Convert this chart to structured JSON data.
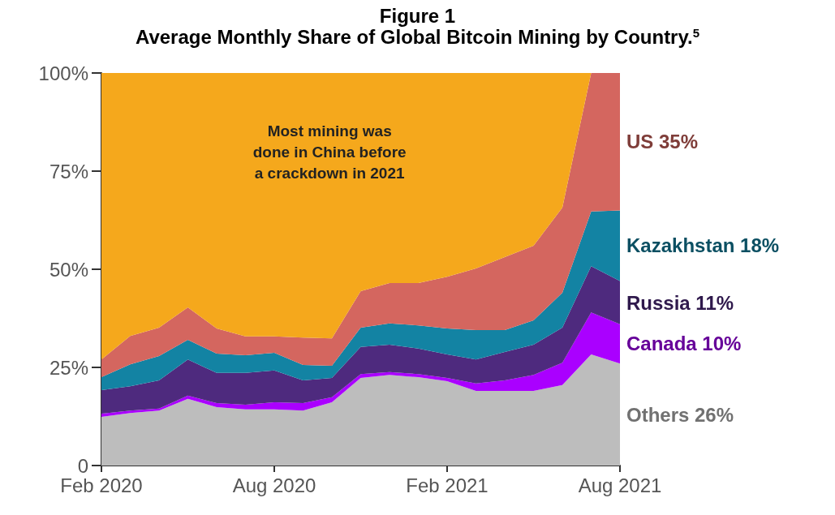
{
  "chart_data": {
    "type": "area",
    "stacked": true,
    "title": "Figure 1",
    "subtitle": "Average Monthly Share of Global Bitcoin Mining by Country.$^{5}$",
    "x": [
      "2020-02",
      "2020-03",
      "2020-04",
      "2020-05",
      "2020-06",
      "2020-07",
      "2020-08",
      "2020-09",
      "2020-10",
      "2020-11",
      "2020-12",
      "2021-01",
      "2021-02",
      "2021-03",
      "2021-04",
      "2021-05",
      "2021-06",
      "2021-07",
      "2021-08"
    ],
    "series": [
      {
        "name": "Others 26%",
        "color": "#bdbdbd",
        "values": [
          12.4,
          13.4,
          14,
          17,
          14.9,
          14.3,
          14.3,
          14,
          16.1,
          22.3,
          23.1,
          22.5,
          21.5,
          19,
          19,
          19,
          20.5,
          28.3,
          26
        ]
      },
      {
        "name": "Canada 10%",
        "color": "#aa00ff",
        "values": [
          0.8,
          0.6,
          0.5,
          0.8,
          1.0,
          1.2,
          1.8,
          1.9,
          1.3,
          1.0,
          0.7,
          0.8,
          0.8,
          1.9,
          2.7,
          4.1,
          5.7,
          10.7,
          10
        ]
      },
      {
        "name": "Russia 11%",
        "color": "#4e2a7e",
        "values": [
          6.0,
          6.2,
          7.2,
          9.2,
          7.7,
          8.1,
          8.1,
          5.8,
          4.9,
          6.9,
          7.0,
          6.5,
          6.0,
          6.1,
          7.2,
          7.7,
          8.9,
          11.8,
          11
        ]
      },
      {
        "name": "Kazakhstan 18%",
        "color": "#1383a3",
        "values": [
          3.3,
          5.6,
          6.2,
          5.0,
          4.9,
          4.5,
          4.5,
          3.9,
          3.1,
          4.9,
          5.4,
          5.9,
          6.6,
          7.5,
          5.6,
          6.2,
          8.9,
          13.9,
          18
        ]
      },
      {
        "name": "US 35%",
        "color": "#d4665f",
        "values": [
          4.5,
          7.2,
          7.2,
          8.3,
          6.4,
          4.8,
          4.2,
          7.0,
          7.0,
          9.3,
          10.3,
          10.8,
          13.2,
          15.7,
          18.6,
          19,
          21.7,
          35.3,
          35
        ]
      },
      {
        "color": "#f5a81c",
        "values": [
          73,
          67,
          64.9,
          59.7,
          65.1,
          67.1,
          67.1,
          67.4,
          67.6,
          55.6,
          53.5,
          53.5,
          51.9,
          49.8,
          46.9,
          44,
          34.3,
          0,
          0
        ]
      }
    ],
    "annotations": [
      "Most mining was\ndone in China before\na crackdown in 2021"
    ],
    "xlim": [
      "2020-02",
      "2021-08"
    ],
    "xticks": [
      {
        "value": "2020-02",
        "label": "Feb 2020"
      },
      {
        "value": "2020-08",
        "label": "Aug 2020"
      },
      {
        "value": "2021-02",
        "label": "Feb 2021"
      },
      {
        "value": "2021-08",
        "label": "Aug 2021"
      }
    ],
    "ylim": [
      0,
      100
    ],
    "yticks": [
      0,
      {
        "value": 25,
        "label": "25%"
      },
      {
        "value": 50,
        "label": "50%"
      },
      {
        "value": 75,
        "label": "75%"
      },
      {
        "value": 100,
        "label": "100%"
      }
    ],
    "grid": false,
    "legend": false
  }
}
